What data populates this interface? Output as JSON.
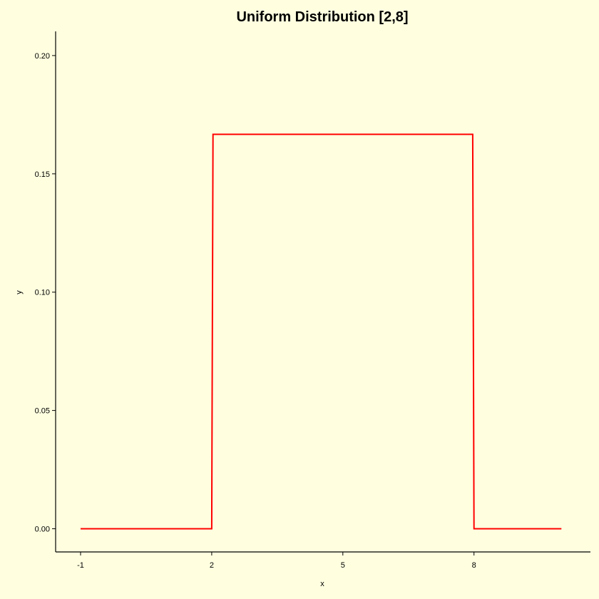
{
  "chart_data": {
    "type": "line",
    "title": "Uniform Distribution [2,8]",
    "xlabel": "x",
    "ylabel": "y",
    "xlim": [
      -1.0,
      10.0
    ],
    "ylim": [
      -0.01,
      0.21
    ],
    "x_ticks": [
      -1,
      2,
      5,
      8
    ],
    "x_tick_labels": [
      "-1",
      "2",
      "5",
      "8"
    ],
    "y_ticks": [
      0,
      0.05,
      0.1,
      0.15,
      0.2
    ],
    "y_tick_labels": [
      "0.00",
      "0.05",
      "0.10",
      "0.15",
      "0.20"
    ],
    "grid": false,
    "background_color": "#FFFFE0",
    "series": [
      {
        "color": "#FF0000",
        "points": [
          [
            -1.0,
            0.0
          ],
          [
            2.0,
            0.0
          ],
          [
            2.03,
            0.1667
          ],
          [
            7.97,
            0.1667
          ],
          [
            8.0,
            0.0
          ],
          [
            10.0,
            0.0
          ]
        ]
      }
    ]
  }
}
